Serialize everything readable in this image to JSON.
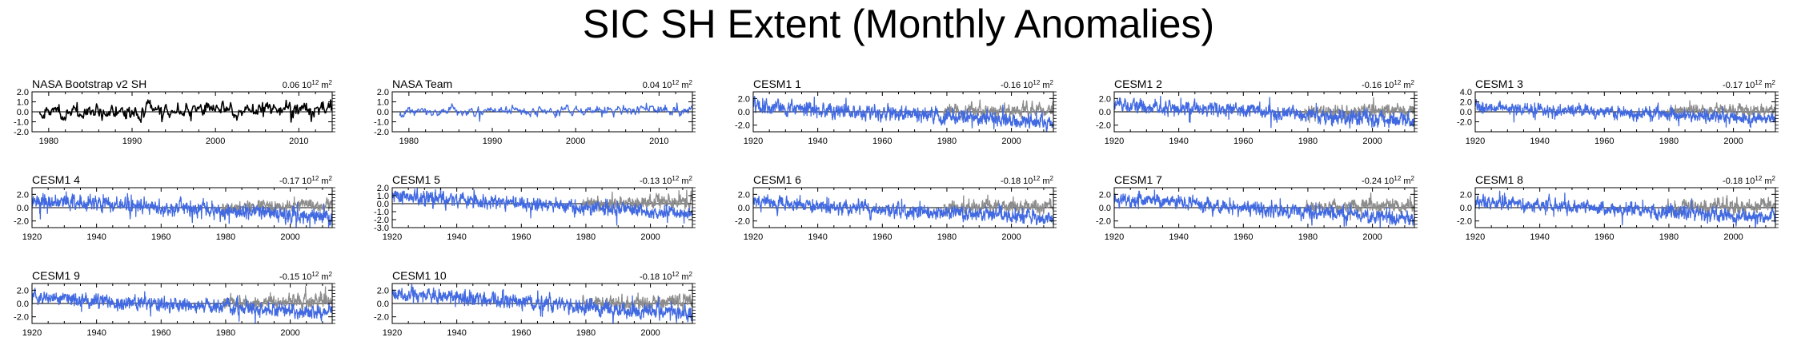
{
  "title": "SIC SH Extent (Monthly Anomalies)",
  "colors": {
    "observed": "#000000",
    "model": "#4169e1",
    "obs_overlay": "#8c8c8c",
    "axis": "#000000",
    "zero_line": "#000000"
  },
  "chart_data": [
    {
      "type": "line",
      "title": "NASA Bootstrap v2 SH",
      "trend_label": "0.06 10",
      "trend_exp": "12",
      "trend_unit": " m",
      "trend_unit_exp": "2",
      "xlim": [
        1978,
        2014
      ],
      "ylim": [
        -2.0,
        2.0
      ],
      "xticks": [
        1980,
        1990,
        2000,
        2010
      ],
      "yticks": [
        {
          "value": 2.0,
          "label": "2.0"
        },
        {
          "value": 1.0,
          "label": "1.0"
        },
        {
          "value": 0.0,
          "label": "0.0"
        },
        {
          "value": -1.0,
          "label": "-1.0"
        },
        {
          "value": -2.0,
          "label": "-2.0"
        }
      ],
      "series": [
        {
          "color_role": "observed",
          "start": 1978.9,
          "end": 2013.9,
          "amp": 0.45,
          "mean_start": 0.0,
          "mean_end": 0.3,
          "seed": 11
        }
      ]
    },
    {
      "type": "line",
      "title": "NASA Team",
      "trend_label": "0.04 10",
      "trend_exp": "12",
      "trend_unit": " m",
      "trend_unit_exp": "2",
      "xlim": [
        1978,
        2014
      ],
      "ylim": [
        -2.0,
        2.0
      ],
      "xticks": [
        1980,
        1990,
        2000,
        2010
      ],
      "yticks": [
        {
          "value": 2.0,
          "label": "2.0"
        },
        {
          "value": 1.0,
          "label": "1.0"
        },
        {
          "value": 0.0,
          "label": "0.0"
        },
        {
          "value": -1.0,
          "label": "-1.0"
        },
        {
          "value": -2.0,
          "label": "-2.0"
        }
      ],
      "series": [
        {
          "color_role": "model",
          "start": 1978.9,
          "end": 2013.9,
          "amp": 0.3,
          "mean_start": 0.0,
          "mean_end": 0.2,
          "seed": 23
        }
      ]
    },
    {
      "type": "line",
      "title": "CESM1 1",
      "trend_label": "-0.16 10",
      "trend_exp": "12",
      "trend_unit": " m",
      "trend_unit_exp": "2",
      "xlim": [
        1920,
        2013
      ],
      "ylim": [
        -3.0,
        3.0
      ],
      "xticks": [
        1920,
        1940,
        1960,
        1980,
        2000
      ],
      "yticks": [
        {
          "value": 2.0,
          "label": "2.0"
        },
        {
          "value": 0.0,
          "label": "0.0"
        },
        {
          "value": -2.0,
          "label": "-2.0"
        }
      ],
      "series": [
        {
          "color_role": "obs_overlay",
          "start": 1979,
          "end": 2013,
          "amp": 0.6,
          "mean_start": 0.0,
          "mean_end": 0.3,
          "seed": 31
        },
        {
          "color_role": "model",
          "start": 1920,
          "end": 2013,
          "amp": 0.65,
          "mean_start": 0.9,
          "mean_end": -1.6,
          "seed": 41
        }
      ]
    },
    {
      "type": "line",
      "title": "CESM1 2",
      "trend_label": "-0.16 10",
      "trend_exp": "12",
      "trend_unit": " m",
      "trend_unit_exp": "2",
      "xlim": [
        1920,
        2013
      ],
      "ylim": [
        -3.0,
        3.0
      ],
      "xticks": [
        1920,
        1940,
        1960,
        1980,
        2000
      ],
      "yticks": [
        {
          "value": 2.0,
          "label": "2.0"
        },
        {
          "value": 0.0,
          "label": "0.0"
        },
        {
          "value": -2.0,
          "label": "-2.0"
        }
      ],
      "series": [
        {
          "color_role": "obs_overlay",
          "start": 1979,
          "end": 2013,
          "amp": 0.6,
          "mean_start": 0.0,
          "mean_end": 0.3,
          "seed": 32
        },
        {
          "color_role": "model",
          "start": 1920,
          "end": 2013,
          "amp": 0.6,
          "mean_start": 1.2,
          "mean_end": -1.4,
          "seed": 42
        }
      ]
    },
    {
      "type": "line",
      "title": "CESM1 3",
      "trend_label": "-0.17 10",
      "trend_exp": "12",
      "trend_unit": " m",
      "trend_unit_exp": "2",
      "xlim": [
        1920,
        2013
      ],
      "ylim": [
        -4.0,
        4.0
      ],
      "xticks": [
        1920,
        1940,
        1960,
        1980,
        2000
      ],
      "yticks": [
        {
          "value": 4.0,
          "label": "4.0"
        },
        {
          "value": 2.0,
          "label": "2.0"
        },
        {
          "value": 0.0,
          "label": "0.0"
        },
        {
          "value": -2.0,
          "label": "-2.0"
        }
      ],
      "series": [
        {
          "color_role": "obs_overlay",
          "start": 1979,
          "end": 2013,
          "amp": 0.7,
          "mean_start": 0.0,
          "mean_end": 0.3,
          "seed": 33
        },
        {
          "color_role": "model",
          "start": 1920,
          "end": 2013,
          "amp": 0.7,
          "mean_start": 1.0,
          "mean_end": -1.5,
          "seed": 43
        }
      ]
    },
    {
      "type": "line",
      "title": "CESM1 4",
      "trend_label": "-0.17 10",
      "trend_exp": "12",
      "trend_unit": " m",
      "trend_unit_exp": "2",
      "xlim": [
        1920,
        2013
      ],
      "ylim": [
        -3.0,
        3.0
      ],
      "xticks": [
        1920,
        1940,
        1960,
        1980,
        2000
      ],
      "yticks": [
        {
          "value": 2.0,
          "label": "2.0"
        },
        {
          "value": 0.0,
          "label": "0.0"
        },
        {
          "value": -2.0,
          "label": "-2.0"
        }
      ],
      "series": [
        {
          "color_role": "obs_overlay",
          "start": 1979,
          "end": 2013,
          "amp": 0.6,
          "mean_start": 0.0,
          "mean_end": 0.3,
          "seed": 34
        },
        {
          "color_role": "model",
          "start": 1920,
          "end": 2013,
          "amp": 0.65,
          "mean_start": 1.1,
          "mean_end": -1.5,
          "seed": 44
        }
      ]
    },
    {
      "type": "line",
      "title": "CESM1 5",
      "trend_label": "-0.13 10",
      "trend_exp": "12",
      "trend_unit": " m",
      "trend_unit_exp": "2",
      "xlim": [
        1920,
        2013
      ],
      "ylim": [
        -3.0,
        2.0
      ],
      "xticks": [
        1920,
        1940,
        1960,
        1980,
        2000
      ],
      "yticks": [
        {
          "value": 2.0,
          "label": "2.0"
        },
        {
          "value": 1.0,
          "label": "1.0"
        },
        {
          "value": 0.0,
          "label": "0.0"
        },
        {
          "value": -1.0,
          "label": "-1.0"
        },
        {
          "value": -2.0,
          "label": "-2.0"
        },
        {
          "value": -3.0,
          "label": "-3.0"
        }
      ],
      "series": [
        {
          "color_role": "obs_overlay",
          "start": 1979,
          "end": 2013,
          "amp": 0.5,
          "mean_start": 0.0,
          "mean_end": 0.3,
          "seed": 35
        },
        {
          "color_role": "model",
          "start": 1920,
          "end": 2013,
          "amp": 0.5,
          "mean_start": 0.9,
          "mean_end": -1.2,
          "seed": 45
        }
      ]
    },
    {
      "type": "line",
      "title": "CESM1 6",
      "trend_label": "-0.18 10",
      "trend_exp": "12",
      "trend_unit": " m",
      "trend_unit_exp": "2",
      "xlim": [
        1920,
        2013
      ],
      "ylim": [
        -3.0,
        3.0
      ],
      "xticks": [
        1920,
        1940,
        1960,
        1980,
        2000
      ],
      "yticks": [
        {
          "value": 2.0,
          "label": "2.0"
        },
        {
          "value": 0.0,
          "label": "0.0"
        },
        {
          "value": -2.0,
          "label": "-2.0"
        }
      ],
      "series": [
        {
          "color_role": "obs_overlay",
          "start": 1979,
          "end": 2013,
          "amp": 0.6,
          "mean_start": 0.0,
          "mean_end": 0.3,
          "seed": 36
        },
        {
          "color_role": "model",
          "start": 1920,
          "end": 2013,
          "amp": 0.6,
          "mean_start": 0.8,
          "mean_end": -1.7,
          "seed": 46
        }
      ]
    },
    {
      "type": "line",
      "title": "CESM1 7",
      "trend_label": "-0.24 10",
      "trend_exp": "12",
      "trend_unit": " m",
      "trend_unit_exp": "2",
      "xlim": [
        1920,
        2013
      ],
      "ylim": [
        -3.0,
        3.0
      ],
      "xticks": [
        1920,
        1940,
        1960,
        1980,
        2000
      ],
      "yticks": [
        {
          "value": 2.0,
          "label": "2.0"
        },
        {
          "value": 0.0,
          "label": "0.0"
        },
        {
          "value": -2.0,
          "label": "-2.0"
        }
      ],
      "series": [
        {
          "color_role": "obs_overlay",
          "start": 1979,
          "end": 2013,
          "amp": 0.6,
          "mean_start": 0.0,
          "mean_end": 0.3,
          "seed": 37
        },
        {
          "color_role": "model",
          "start": 1920,
          "end": 2013,
          "amp": 0.6,
          "mean_start": 1.3,
          "mean_end": -1.8,
          "seed": 47
        }
      ]
    },
    {
      "type": "line",
      "title": "CESM1 8",
      "trend_label": "-0.18 10",
      "trend_exp": "12",
      "trend_unit": " m",
      "trend_unit_exp": "2",
      "xlim": [
        1920,
        2013
      ],
      "ylim": [
        -3.0,
        3.0
      ],
      "xticks": [
        1920,
        1940,
        1960,
        1980,
        2000
      ],
      "yticks": [
        {
          "value": 2.0,
          "label": "2.0"
        },
        {
          "value": 0.0,
          "label": "0.0"
        },
        {
          "value": -2.0,
          "label": "-2.0"
        }
      ],
      "series": [
        {
          "color_role": "obs_overlay",
          "start": 1979,
          "end": 2013,
          "amp": 0.6,
          "mean_start": 0.0,
          "mean_end": 0.3,
          "seed": 38
        },
        {
          "color_role": "model",
          "start": 1920,
          "end": 2013,
          "amp": 0.6,
          "mean_start": 1.0,
          "mean_end": -1.6,
          "seed": 48
        }
      ]
    },
    {
      "type": "line",
      "title": "CESM1 9",
      "trend_label": "-0.15 10",
      "trend_exp": "12",
      "trend_unit": " m",
      "trend_unit_exp": "2",
      "xlim": [
        1920,
        2013
      ],
      "ylim": [
        -3.0,
        3.0
      ],
      "xticks": [
        1920,
        1940,
        1960,
        1980,
        2000
      ],
      "yticks": [
        {
          "value": 2.0,
          "label": "2.0"
        },
        {
          "value": 0.0,
          "label": "0.0"
        },
        {
          "value": -2.0,
          "label": "-2.0"
        }
      ],
      "series": [
        {
          "color_role": "obs_overlay",
          "start": 1979,
          "end": 2013,
          "amp": 0.6,
          "mean_start": 0.0,
          "mean_end": 0.4,
          "seed": 39
        },
        {
          "color_role": "model",
          "start": 1920,
          "end": 2013,
          "amp": 0.6,
          "mean_start": 1.0,
          "mean_end": -1.4,
          "seed": 49
        }
      ]
    },
    {
      "type": "line",
      "title": "CESM1 10",
      "trend_label": "-0.18 10",
      "trend_exp": "12",
      "trend_unit": " m",
      "trend_unit_exp": "2",
      "xlim": [
        1920,
        2013
      ],
      "ylim": [
        -3.0,
        3.0
      ],
      "xticks": [
        1920,
        1940,
        1960,
        1980,
        2000
      ],
      "yticks": [
        {
          "value": 2.0,
          "label": "2.0"
        },
        {
          "value": 0.0,
          "label": "0.0"
        },
        {
          "value": -2.0,
          "label": "-2.0"
        }
      ],
      "series": [
        {
          "color_role": "obs_overlay",
          "start": 1979,
          "end": 2013,
          "amp": 0.6,
          "mean_start": 0.0,
          "mean_end": 0.3,
          "seed": 40
        },
        {
          "color_role": "model",
          "start": 1920,
          "end": 2013,
          "amp": 0.65,
          "mean_start": 1.5,
          "mean_end": -1.6,
          "seed": 50
        }
      ]
    }
  ]
}
